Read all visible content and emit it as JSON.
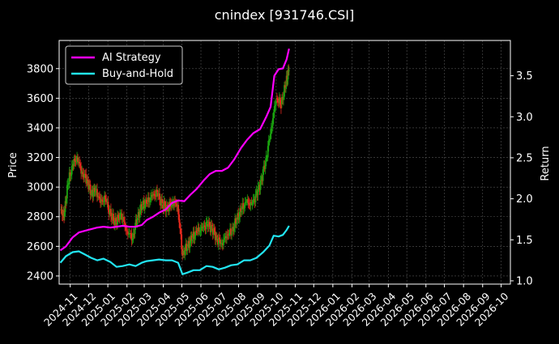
{
  "chart_data": {
    "type": "line",
    "title": "cnindex [931746.CSI]",
    "xlabel": "",
    "ylabel_left": "Price",
    "ylabel_right": "Return",
    "grid": true,
    "legend_position": "upper-left",
    "x_ticks": [
      "2024-11",
      "2024-12",
      "2025-01",
      "2025-02",
      "2025-03",
      "2025-04",
      "2025-05",
      "2025-06",
      "2025-07",
      "2025-08",
      "2025-09",
      "2025-10",
      "2025-11",
      "2025-12",
      "2026-01",
      "2026-02",
      "2026-03",
      "2026-04",
      "2026-05",
      "2026-06",
      "2026-07",
      "2026-08",
      "2026-09",
      "2026-10"
    ],
    "x_range": [
      "2024-10-14",
      "2026-10-16"
    ],
    "y_left": {
      "ticks": [
        2400,
        2600,
        2800,
        3000,
        3200,
        3400,
        3600,
        3800
      ],
      "range": [
        2345,
        3990
      ]
    },
    "y_right": {
      "ticks": [
        1.0,
        1.5,
        2.0,
        2.5,
        3.0,
        3.5
      ],
      "range": [
        0.96,
        3.93
      ]
    },
    "series": [
      {
        "name": "AI Strategy",
        "axis": "right",
        "color": "#ff00ff",
        "points": [
          [
            "2024-10-16",
            1.37
          ],
          [
            "2024-10-25",
            1.42
          ],
          [
            "2024-11-05",
            1.53
          ],
          [
            "2024-11-15",
            1.59
          ],
          [
            "2024-11-25",
            1.61
          ],
          [
            "2024-12-05",
            1.63
          ],
          [
            "2024-12-15",
            1.65
          ],
          [
            "2024-12-25",
            1.66
          ],
          [
            "2025-01-05",
            1.65
          ],
          [
            "2025-01-15",
            1.66
          ],
          [
            "2025-01-25",
            1.67
          ],
          [
            "2025-02-05",
            1.66
          ],
          [
            "2025-02-15",
            1.66
          ],
          [
            "2025-02-25",
            1.68
          ],
          [
            "2025-03-05",
            1.74
          ],
          [
            "2025-03-15",
            1.78
          ],
          [
            "2025-03-25",
            1.83
          ],
          [
            "2025-04-05",
            1.87
          ],
          [
            "2025-04-15",
            1.95
          ],
          [
            "2025-04-25",
            1.98
          ],
          [
            "2025-05-05",
            1.97
          ],
          [
            "2025-05-15",
            2.05
          ],
          [
            "2025-05-25",
            2.12
          ],
          [
            "2025-06-05",
            2.22
          ],
          [
            "2025-06-15",
            2.3
          ],
          [
            "2025-06-25",
            2.34
          ],
          [
            "2025-07-05",
            2.34
          ],
          [
            "2025-07-15",
            2.38
          ],
          [
            "2025-07-25",
            2.48
          ],
          [
            "2025-08-05",
            2.62
          ],
          [
            "2025-08-15",
            2.72
          ],
          [
            "2025-08-25",
            2.8
          ],
          [
            "2025-09-05",
            2.85
          ],
          [
            "2025-09-15",
            3.0
          ],
          [
            "2025-09-22",
            3.12
          ],
          [
            "2025-09-28",
            3.5
          ],
          [
            "2025-10-05",
            3.58
          ],
          [
            "2025-10-12",
            3.59
          ],
          [
            "2025-10-18",
            3.7
          ],
          [
            "2025-10-22",
            3.83
          ]
        ]
      },
      {
        "name": "Buy-and-Hold",
        "axis": "right",
        "color": "#22e5f2",
        "points": [
          [
            "2024-10-16",
            1.22
          ],
          [
            "2024-10-25",
            1.3
          ],
          [
            "2024-11-05",
            1.35
          ],
          [
            "2024-11-15",
            1.36
          ],
          [
            "2024-11-25",
            1.32
          ],
          [
            "2024-12-05",
            1.28
          ],
          [
            "2024-12-15",
            1.25
          ],
          [
            "2024-12-25",
            1.27
          ],
          [
            "2025-01-05",
            1.23
          ],
          [
            "2025-01-15",
            1.17
          ],
          [
            "2025-01-25",
            1.18
          ],
          [
            "2025-02-05",
            1.2
          ],
          [
            "2025-02-15",
            1.18
          ],
          [
            "2025-02-25",
            1.22
          ],
          [
            "2025-03-05",
            1.24
          ],
          [
            "2025-03-15",
            1.25
          ],
          [
            "2025-03-25",
            1.26
          ],
          [
            "2025-04-05",
            1.25
          ],
          [
            "2025-04-15",
            1.25
          ],
          [
            "2025-04-25",
            1.22
          ],
          [
            "2025-05-02",
            1.08
          ],
          [
            "2025-05-10",
            1.1
          ],
          [
            "2025-05-20",
            1.13
          ],
          [
            "2025-05-30",
            1.13
          ],
          [
            "2025-06-10",
            1.18
          ],
          [
            "2025-06-20",
            1.17
          ],
          [
            "2025-06-30",
            1.14
          ],
          [
            "2025-07-10",
            1.16
          ],
          [
            "2025-07-20",
            1.19
          ],
          [
            "2025-07-30",
            1.2
          ],
          [
            "2025-08-10",
            1.25
          ],
          [
            "2025-08-20",
            1.25
          ],
          [
            "2025-08-30",
            1.28
          ],
          [
            "2025-09-10",
            1.35
          ],
          [
            "2025-09-20",
            1.43
          ],
          [
            "2025-09-27",
            1.55
          ],
          [
            "2025-10-05",
            1.54
          ],
          [
            "2025-10-12",
            1.56
          ],
          [
            "2025-10-18",
            1.62
          ],
          [
            "2025-10-22",
            1.67
          ]
        ]
      },
      {
        "name": "Price",
        "axis": "left",
        "type": "candlestick",
        "up_color": "#1aa30f",
        "down_color": "#e5281d",
        "points": [
          [
            "2024-10-16",
            2850
          ],
          [
            "2024-10-22",
            2800
          ],
          [
            "2024-10-28",
            3020
          ],
          [
            "2024-11-05",
            3150
          ],
          [
            "2024-11-12",
            3200
          ],
          [
            "2024-11-20",
            3100
          ],
          [
            "2024-11-28",
            3050
          ],
          [
            "2024-12-05",
            2960
          ],
          [
            "2024-12-12",
            2980
          ],
          [
            "2024-12-20",
            2900
          ],
          [
            "2024-12-28",
            2920
          ],
          [
            "2025-01-06",
            2800
          ],
          [
            "2025-01-14",
            2760
          ],
          [
            "2025-01-22",
            2820
          ],
          [
            "2025-02-01",
            2700
          ],
          [
            "2025-02-10",
            2660
          ],
          [
            "2025-02-18",
            2800
          ],
          [
            "2025-02-26",
            2880
          ],
          [
            "2025-03-06",
            2900
          ],
          [
            "2025-03-14",
            2940
          ],
          [
            "2025-03-22",
            2960
          ],
          [
            "2025-03-30",
            2880
          ],
          [
            "2025-04-08",
            2860
          ],
          [
            "2025-04-16",
            2900
          ],
          [
            "2025-04-24",
            2880
          ],
          [
            "2025-05-02",
            2550
          ],
          [
            "2025-05-10",
            2600
          ],
          [
            "2025-05-18",
            2660
          ],
          [
            "2025-05-26",
            2700
          ],
          [
            "2025-06-03",
            2720
          ],
          [
            "2025-06-11",
            2750
          ],
          [
            "2025-06-19",
            2720
          ],
          [
            "2025-06-27",
            2650
          ],
          [
            "2025-07-05",
            2620
          ],
          [
            "2025-07-13",
            2680
          ],
          [
            "2025-07-21",
            2700
          ],
          [
            "2025-07-29",
            2780
          ],
          [
            "2025-08-06",
            2850
          ],
          [
            "2025-08-14",
            2900
          ],
          [
            "2025-08-22",
            2880
          ],
          [
            "2025-08-30",
            2950
          ],
          [
            "2025-09-07",
            3050
          ],
          [
            "2025-09-15",
            3200
          ],
          [
            "2025-09-23",
            3400
          ],
          [
            "2025-10-01",
            3600
          ],
          [
            "2025-10-09",
            3560
          ],
          [
            "2025-10-17",
            3700
          ],
          [
            "2025-10-22",
            3800
          ]
        ]
      }
    ]
  }
}
